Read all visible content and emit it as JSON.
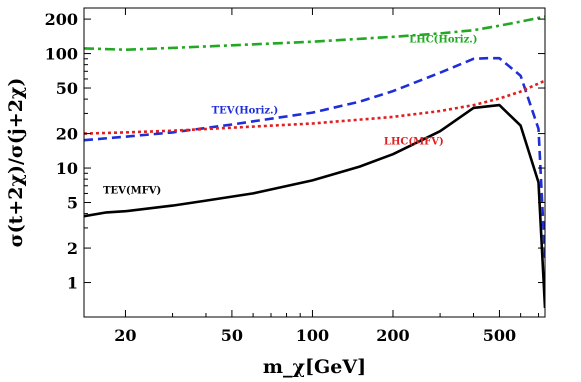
{
  "chart_data": {
    "type": "line",
    "xlabel": "m_χ[GeV]",
    "ylabel": "σ(t+2χ)/σ(j+2χ)",
    "xscale": "log",
    "yscale": "log",
    "xlim": [
      14,
      740
    ],
    "ylim": [
      0.5,
      250
    ],
    "grid": false,
    "legend": "inline labels",
    "x_ticks": [
      {
        "value": 20,
        "label": "20"
      },
      {
        "value": 50,
        "label": "50"
      },
      {
        "value": 100,
        "label": "100"
      },
      {
        "value": 200,
        "label": "200"
      },
      {
        "value": 500,
        "label": "500"
      }
    ],
    "y_ticks": [
      {
        "value": 1,
        "label": "1"
      },
      {
        "value": 2,
        "label": "2"
      },
      {
        "value": 5,
        "label": "5"
      },
      {
        "value": 10,
        "label": "10"
      },
      {
        "value": 20,
        "label": "20"
      },
      {
        "value": 50,
        "label": "50"
      },
      {
        "value": 100,
        "label": "100"
      },
      {
        "value": 200,
        "label": "200"
      }
    ],
    "series": [
      {
        "name": "TEV(MFV)",
        "color": "#000000",
        "dash": "solid",
        "label_at": [
          16.5,
          6.0
        ],
        "x": [
          14,
          17,
          20,
          30,
          40,
          60,
          100,
          150,
          200,
          300,
          400,
          500,
          600,
          700,
          740
        ],
        "y": [
          3.8,
          4.1,
          4.2,
          4.7,
          5.2,
          6.0,
          7.8,
          10.3,
          13.2,
          21.0,
          33.5,
          35.5,
          23.5,
          7.5,
          0.6
        ]
      },
      {
        "name": "TEV(Horiz.)",
        "color": "#1f2fd8",
        "dash": "dashed",
        "label_at": [
          42,
          30
        ],
        "x": [
          14,
          20,
          30,
          50,
          100,
          150,
          200,
          300,
          400,
          450,
          500,
          600,
          700,
          740
        ],
        "y": [
          17.5,
          18.8,
          20.5,
          24.0,
          30.5,
          38.0,
          47.0,
          68.0,
          90.0,
          91.0,
          91.0,
          64.0,
          22.0,
          1.6
        ]
      },
      {
        "name": "LHC(MFV)",
        "color": "#e02020",
        "dash": "dotted",
        "label_at": [
          185,
          16
        ],
        "x": [
          14,
          20,
          30,
          50,
          100,
          200,
          300,
          400,
          500,
          600,
          740
        ],
        "y": [
          20.0,
          20.5,
          21.2,
          22.5,
          24.5,
          28.0,
          31.5,
          35.5,
          40.5,
          46.5,
          58.0
        ]
      },
      {
        "name": "LHC(Horiz.)",
        "color": "#22a822",
        "dash": "dashdot",
        "label_at": [
          230,
          125
        ],
        "x": [
          14,
          20,
          30,
          50,
          100,
          200,
          300,
          400,
          500,
          600,
          700,
          740
        ],
        "y": [
          111,
          108,
          112,
          118,
          127,
          140,
          150,
          160,
          175,
          190,
          205,
          210
        ]
      }
    ]
  }
}
